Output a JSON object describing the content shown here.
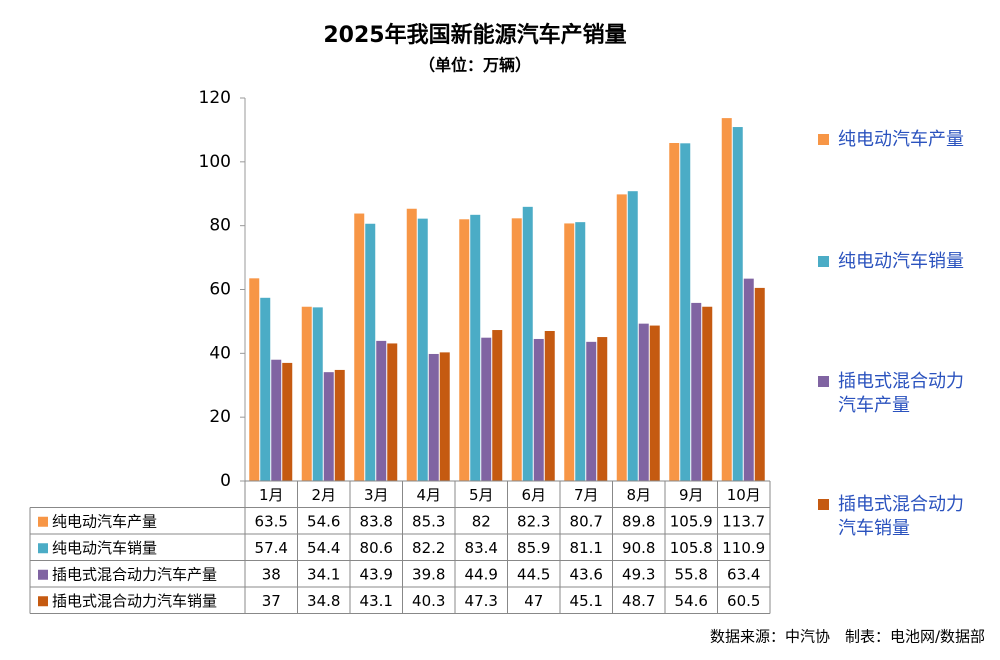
{
  "chart_data": {
    "type": "bar",
    "title": "2025年我国新能源汽车产销量",
    "subtitle": "（单位：万辆）",
    "categories": [
      "1月",
      "2月",
      "3月",
      "4月",
      "5月",
      "6月",
      "7月",
      "8月",
      "9月",
      "10月"
    ],
    "series": [
      {
        "name": "纯电动汽车产量",
        "color": "#f79646",
        "values": [
          63.5,
          54.6,
          83.8,
          85.3,
          82,
          82.3,
          80.7,
          89.8,
          105.9,
          113.7
        ]
      },
      {
        "name": "纯电动汽车销量",
        "color": "#4bacc6",
        "values": [
          57.4,
          54.4,
          80.6,
          82.2,
          83.4,
          85.9,
          81.1,
          90.8,
          105.8,
          110.9
        ]
      },
      {
        "name": "插电式混合动力汽车产量",
        "color": "#8064a2",
        "values": [
          38,
          34.1,
          43.9,
          39.8,
          44.9,
          44.5,
          43.6,
          49.3,
          55.8,
          63.4
        ]
      },
      {
        "name": "插电式混合动力汽车销量",
        "color": "#c55a11",
        "values": [
          37,
          34.8,
          43.1,
          40.3,
          47.3,
          47,
          45.1,
          48.7,
          54.6,
          60.5
        ]
      }
    ],
    "ylim": [
      0,
      120
    ],
    "yticks": [
      0,
      20,
      40,
      60,
      80,
      100,
      120
    ],
    "source": "数据来源：中汽协　制表：电池网/数据部"
  }
}
